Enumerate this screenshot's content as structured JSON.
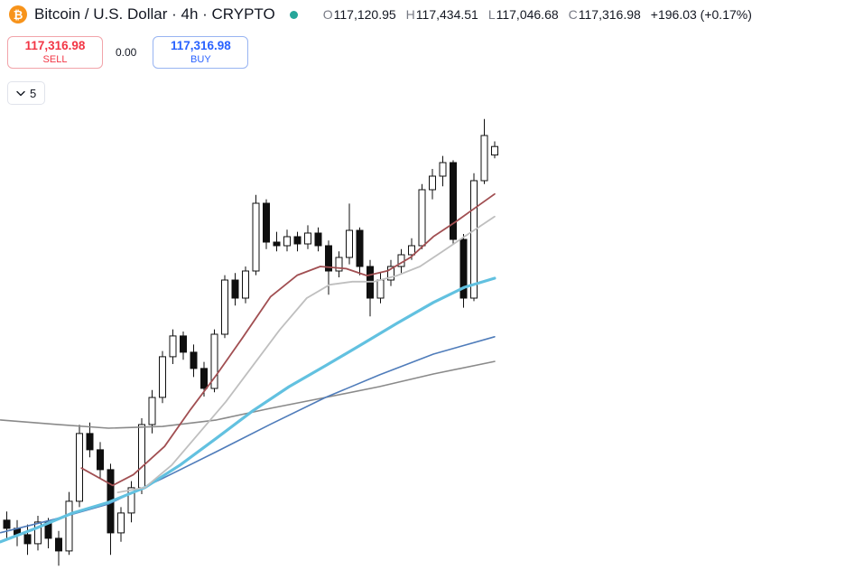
{
  "header": {
    "symbol_title": "Bitcoin / U.S. Dollar · 4h · CRYPTO",
    "ohlc": {
      "open_label": "O",
      "open": "117,120.95",
      "high_label": "H",
      "high": "117,434.51",
      "low_label": "L",
      "low": "117,046.68",
      "close_label": "C",
      "close": "117,316.98",
      "change": "+196.03 (+0.17%)"
    }
  },
  "trade_panel": {
    "sell_price": "117,316.98",
    "sell_label": "SELL",
    "spread": "0.00",
    "buy_price": "117,316.98",
    "buy_label": "BUY"
  },
  "toolbar": {
    "candle_countdown": "5"
  },
  "icons": {
    "bitcoin_symbol": "₿",
    "status_dot": "market-open-dot",
    "chevron": "chevron-down"
  },
  "colors": {
    "sell_red": "#f23645",
    "buy_blue": "#2962ff",
    "bitcoin_orange": "#f7931a",
    "status_teal": "#26a69a",
    "label_gray": "#787b86",
    "text_dark": "#131722"
  },
  "chart_data": {
    "type": "candlestick",
    "title": "Bitcoin / U.S. Dollar",
    "timeframe": "4h",
    "exchange": "CRYPTO",
    "axes_visible": false,
    "grid": false,
    "price_domain": [
      107550,
      118300
    ],
    "up_style": {
      "body": "#ffffff",
      "border": "#0f0f0f"
    },
    "down_style": {
      "body": "#0f0f0f",
      "border": "#0f0f0f"
    },
    "candles": [
      [
        108700,
        108900,
        108250,
        108510
      ],
      [
        108510,
        108700,
        108100,
        108364
      ],
      [
        108364,
        108600,
        107900,
        108156
      ],
      [
        108156,
        108800,
        108000,
        108656
      ],
      [
        108656,
        108750,
        108050,
        108281
      ],
      [
        108281,
        108450,
        107650,
        107989
      ],
      [
        107989,
        109350,
        107900,
        109135
      ],
      [
        109135,
        110900,
        109000,
        110697
      ],
      [
        110697,
        110950,
        110150,
        110322
      ],
      [
        110322,
        110500,
        109650,
        109864
      ],
      [
        109864,
        110000,
        107900,
        108406
      ],
      [
        108406,
        109000,
        108200,
        108864
      ],
      [
        108864,
        109600,
        108650,
        109447
      ],
      [
        109447,
        111050,
        109300,
        110905
      ],
      [
        110905,
        111700,
        110700,
        111530
      ],
      [
        111530,
        112600,
        111400,
        112468
      ],
      [
        112468,
        113100,
        112300,
        112947
      ],
      [
        112947,
        113050,
        112400,
        112572
      ],
      [
        112572,
        112750,
        112000,
        112197
      ],
      [
        112197,
        112350,
        111550,
        111739
      ],
      [
        111739,
        113100,
        111650,
        112988
      ],
      [
        112988,
        114350,
        112900,
        114238
      ],
      [
        114238,
        114400,
        113650,
        113822
      ],
      [
        113822,
        114550,
        113700,
        114446
      ],
      [
        114446,
        116200,
        114350,
        116009
      ],
      [
        116009,
        116100,
        114950,
        115113
      ],
      [
        115113,
        115350,
        114900,
        115030
      ],
      [
        115030,
        115400,
        114900,
        115238
      ],
      [
        115238,
        115350,
        114900,
        115071
      ],
      [
        115071,
        115500,
        114950,
        115321
      ],
      [
        115321,
        115450,
        114900,
        115030
      ],
      [
        115030,
        115150,
        113900,
        114446
      ],
      [
        114446,
        114900,
        114300,
        114759
      ],
      [
        114759,
        116000,
        114600,
        115384
      ],
      [
        115384,
        115450,
        114350,
        114551
      ],
      [
        114551,
        114700,
        113400,
        113822
      ],
      [
        113822,
        114400,
        113700,
        114238
      ],
      [
        114238,
        114700,
        114100,
        114551
      ],
      [
        114551,
        114950,
        114400,
        114821
      ],
      [
        114821,
        115200,
        114700,
        115030
      ],
      [
        115030,
        116450,
        114950,
        116321
      ],
      [
        116321,
        116800,
        116100,
        116634
      ],
      [
        116634,
        117100,
        116400,
        116946
      ],
      [
        116946,
        117000,
        115050,
        115176
      ],
      [
        115176,
        115300,
        113600,
        113822
      ],
      [
        113822,
        116700,
        113750,
        116530
      ],
      [
        116530,
        117950,
        116450,
        117571
      ],
      [
        117120.95,
        117434.51,
        117046.68,
        117316.98
      ]
    ],
    "overlays": [
      {
        "name": "ma-long-gray",
        "color": "#8a8a8a",
        "width": 1.6,
        "points": [
          [
            -0.3,
            111010
          ],
          [
            4.9,
            110910
          ],
          [
            10.1,
            110820
          ],
          [
            15.3,
            110860
          ],
          [
            20.5,
            111010
          ],
          [
            25.7,
            111280
          ],
          [
            31,
            111530
          ],
          [
            36.2,
            111780
          ],
          [
            41.4,
            112070
          ],
          [
            47.3,
            112360
          ]
        ]
      },
      {
        "name": "ma-blue",
        "color": "#4f7cba",
        "width": 1.6,
        "points": [
          [
            -0.3,
            108410
          ],
          [
            4.9,
            108720
          ],
          [
            10.1,
            109070
          ],
          [
            15.3,
            109660
          ],
          [
            20.5,
            110280
          ],
          [
            25.7,
            110910
          ],
          [
            31,
            111530
          ],
          [
            36.2,
            112050
          ],
          [
            41.4,
            112530
          ],
          [
            47.3,
            112930
          ]
        ]
      },
      {
        "name": "ma-cyan-thick",
        "color": "#62c1e0",
        "width": 3.2,
        "points": [
          [
            -0.3,
            108200
          ],
          [
            3.1,
            108510
          ],
          [
            6.6,
            108860
          ],
          [
            10.1,
            109110
          ],
          [
            13.6,
            109450
          ],
          [
            17,
            109970
          ],
          [
            20.5,
            110590
          ],
          [
            24,
            111220
          ],
          [
            27.5,
            111780
          ],
          [
            31,
            112260
          ],
          [
            34.4,
            112740
          ],
          [
            37.9,
            113240
          ],
          [
            41.4,
            113720
          ],
          [
            44.4,
            114070
          ],
          [
            47.3,
            114280
          ]
        ]
      },
      {
        "name": "ma-mid-silver",
        "color": "#bfbfbf",
        "width": 1.8,
        "points": [
          [
            11,
            109340
          ],
          [
            13.6,
            109450
          ],
          [
            16.2,
            109970
          ],
          [
            18.8,
            110700
          ],
          [
            21.4,
            111430
          ],
          [
            24,
            112260
          ],
          [
            26.6,
            113090
          ],
          [
            29.2,
            113820
          ],
          [
            31.4,
            114130
          ],
          [
            33.6,
            114200
          ],
          [
            35.7,
            114200
          ],
          [
            37.9,
            114340
          ],
          [
            40.1,
            114550
          ],
          [
            42.3,
            114900
          ],
          [
            44.4,
            115240
          ],
          [
            47.3,
            115700
          ]
        ]
      },
      {
        "name": "ma-fast-maroon",
        "color": "#a14f52",
        "width": 1.8,
        "points": [
          [
            7.5,
            109900
          ],
          [
            10.5,
            109500
          ],
          [
            12.5,
            109750
          ],
          [
            15.5,
            110400
          ],
          [
            18,
            111250
          ],
          [
            20.5,
            112050
          ],
          [
            23,
            112900
          ],
          [
            25.7,
            113850
          ],
          [
            28.3,
            114350
          ],
          [
            30.5,
            114550
          ],
          [
            33,
            114500
          ],
          [
            35,
            114340
          ],
          [
            37,
            114450
          ],
          [
            39.2,
            114760
          ],
          [
            41.4,
            115240
          ],
          [
            43.6,
            115590
          ],
          [
            45.7,
            115950
          ],
          [
            47.3,
            116220
          ]
        ]
      }
    ]
  }
}
